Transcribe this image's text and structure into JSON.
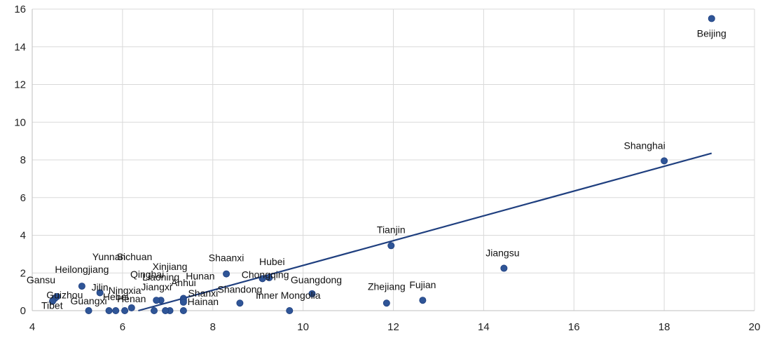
{
  "chart_data": {
    "type": "scatter",
    "title": "",
    "xlabel": "",
    "ylabel": "",
    "xlim": [
      4,
      20
    ],
    "ylim": [
      0,
      16
    ],
    "xticks": [
      "4",
      "6",
      "8",
      "10",
      "12",
      "14",
      "16",
      "18",
      "20"
    ],
    "yticks": [
      "0",
      "2",
      "4",
      "6",
      "8",
      "10",
      "12",
      "14",
      "16"
    ],
    "grid": "vertical and horizontal",
    "marker_color": "#2f5597",
    "trendline": {
      "x": [
        6.35,
        19.05
      ],
      "y": [
        0.0,
        8.35
      ],
      "color": "#1f3f7f"
    },
    "points": [
      {
        "label": "Beijing",
        "x": 19.05,
        "y": 15.5
      },
      {
        "label": "Shanghai",
        "x": 18.0,
        "y": 7.95
      },
      {
        "label": "Jiangsu",
        "x": 14.45,
        "y": 2.25
      },
      {
        "label": "Tianjin",
        "x": 11.95,
        "y": 3.45
      },
      {
        "label": "Fujian",
        "x": 12.65,
        "y": 0.55
      },
      {
        "label": "Zhejiang",
        "x": 11.85,
        "y": 0.4
      },
      {
        "label": "Guangdong",
        "x": 10.2,
        "y": 0.9
      },
      {
        "label": "Inner Mongolia",
        "x": 9.7,
        "y": 0.0
      },
      {
        "label": "Hubei",
        "x": 9.25,
        "y": 1.75
      },
      {
        "label": "Chongqing",
        "x": 9.1,
        "y": 1.7
      },
      {
        "label": "Shandong",
        "x": 8.6,
        "y": 0.4
      },
      {
        "label": "Shaanxi",
        "x": 8.3,
        "y": 1.95
      },
      {
        "label": "Hunan",
        "x": 7.35,
        "y": 0.65
      },
      {
        "label": "Anhui",
        "x": 7.35,
        "y": 0.55
      },
      {
        "label": "Shanxi",
        "x": 7.35,
        "y": 0.45
      },
      {
        "label": "Hainan",
        "x": 7.35,
        "y": 0.0
      },
      {
        "label": "Xinjiang",
        "x": 7.05,
        "y": 0.0
      },
      {
        "label": "Liaoning",
        "x": 6.85,
        "y": 0.55
      },
      {
        "label": "Jiangxi",
        "x": 6.75,
        "y": 0.55
      },
      {
        "label": "Qinghai",
        "x": 6.95,
        "y": 0.0
      },
      {
        "label": "Sichuan",
        "x": 6.7,
        "y": 0.0
      },
      {
        "label": "Henan",
        "x": 6.2,
        "y": 0.15
      },
      {
        "label": "Ningxia",
        "x": 6.05,
        "y": 0.0
      },
      {
        "label": "Hebei",
        "x": 5.85,
        "y": 0.0
      },
      {
        "label": "Yunnan",
        "x": 5.7,
        "y": 0.0
      },
      {
        "label": "Guangxi",
        "x": 5.25,
        "y": 0.0
      },
      {
        "label": "Jilin",
        "x": 5.5,
        "y": 0.95
      },
      {
        "label": "Heilongjiang",
        "x": 5.1,
        "y": 1.3
      },
      {
        "label": "Gansu",
        "x": 4.55,
        "y": 0.75
      },
      {
        "label": "Guizhou",
        "x": 4.5,
        "y": 0.65
      },
      {
        "label": "Tibet",
        "x": 4.45,
        "y": 0.5
      }
    ]
  }
}
